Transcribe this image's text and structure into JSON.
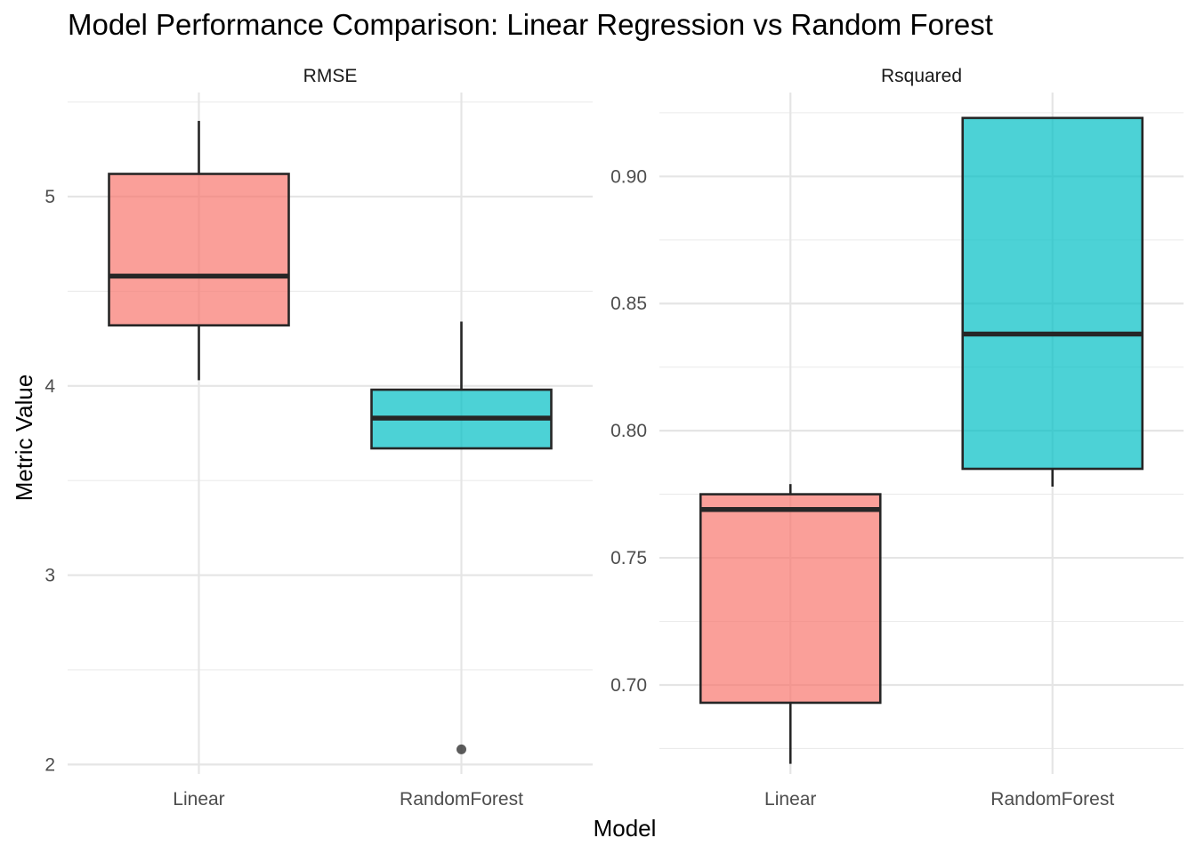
{
  "chart_data": {
    "type": "boxplot",
    "title": "Model Performance Comparison: Linear Regression vs Random Forest",
    "xlabel": "Model",
    "ylabel": "Metric Value",
    "grid": true,
    "colors": {
      "Linear": "#F8766D",
      "RandomForest": "#00BFC4"
    },
    "categories": [
      "Linear",
      "RandomForest"
    ],
    "panels": [
      {
        "name": "RMSE",
        "ylim": [
          1.95,
          5.55
        ],
        "major_ticks": [
          2,
          3,
          4,
          5
        ],
        "tick_labels": [
          "2",
          "3",
          "4",
          "5"
        ],
        "minor_ticks": [
          2.5,
          3.5,
          4.5,
          5.5
        ],
        "boxes": [
          {
            "category": "Linear",
            "whisker_low": 4.03,
            "q1": 4.32,
            "median": 4.58,
            "q3": 5.12,
            "whisker_high": 5.4,
            "outliers": []
          },
          {
            "category": "RandomForest",
            "whisker_low": 3.67,
            "q1": 3.67,
            "median": 3.83,
            "q3": 3.98,
            "whisker_high": 4.34,
            "outliers": [
              2.08
            ]
          }
        ]
      },
      {
        "name": "Rsquared",
        "ylim": [
          0.665,
          0.933
        ],
        "major_ticks": [
          0.7,
          0.75,
          0.8,
          0.85,
          0.9
        ],
        "tick_labels": [
          "0.70",
          "0.75",
          "0.80",
          "0.85",
          "0.90"
        ],
        "minor_ticks": [
          0.675,
          0.725,
          0.775,
          0.825,
          0.875,
          0.925
        ],
        "boxes": [
          {
            "category": "Linear",
            "whisker_low": 0.669,
            "q1": 0.693,
            "median": 0.769,
            "q3": 0.775,
            "whisker_high": 0.779,
            "outliers": []
          },
          {
            "category": "RandomForest",
            "whisker_low": 0.778,
            "q1": 0.785,
            "median": 0.838,
            "q3": 0.923,
            "whisker_high": 0.923,
            "outliers": []
          }
        ]
      }
    ]
  }
}
